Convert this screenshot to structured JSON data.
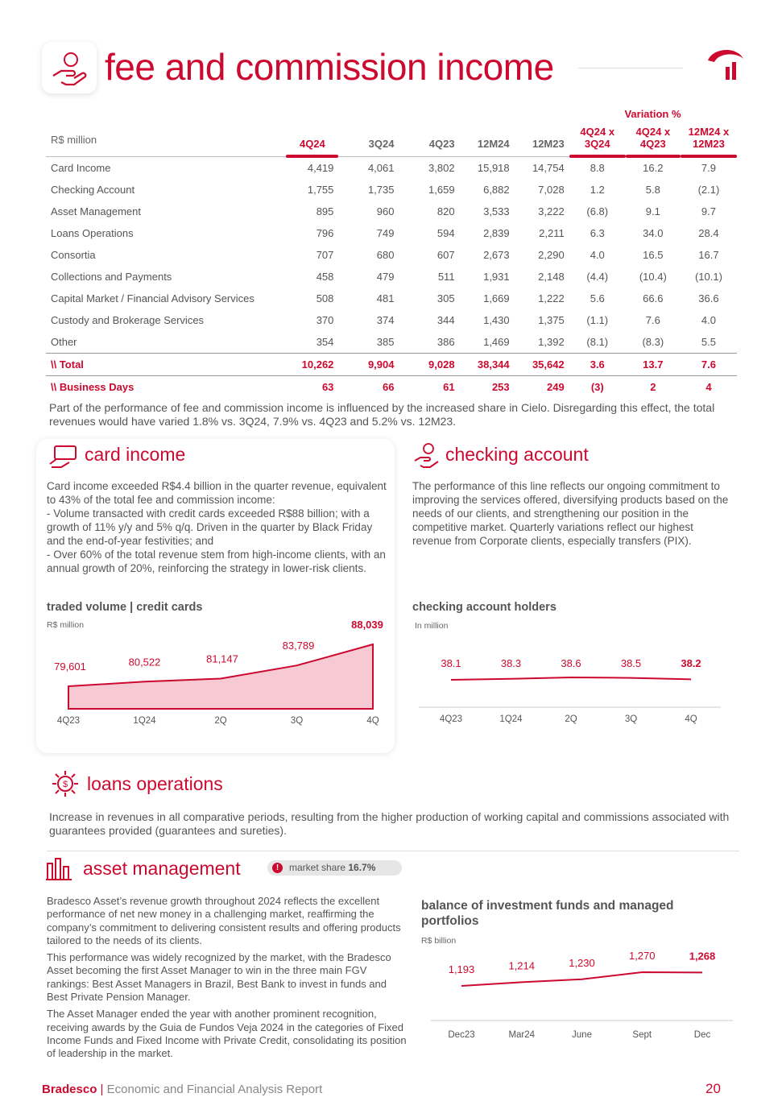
{
  "header": {
    "title": "fee and commission income"
  },
  "table": {
    "unit": "R$ million",
    "group_header": "Variation %",
    "columns": [
      "4Q24",
      "3Q24",
      "4Q23",
      "12M24",
      "12M23",
      "4Q24 x 3Q24",
      "4Q24 x 4Q23",
      "12M24 x 12M23"
    ],
    "rows": [
      [
        "Card Income",
        "4,419",
        "4,061",
        "3,802",
        "15,918",
        "14,754",
        "8.8",
        "16.2",
        "7.9"
      ],
      [
        "Checking Account",
        "1,755",
        "1,735",
        "1,659",
        "6,882",
        "7,028",
        "1.2",
        "5.8",
        "(2.1)"
      ],
      [
        "Asset Management",
        "895",
        "960",
        "820",
        "3,533",
        "3,222",
        "(6.8)",
        "9.1",
        "9.7"
      ],
      [
        "Loans Operations",
        "796",
        "749",
        "594",
        "2,839",
        "2,211",
        "6.3",
        "34.0",
        "28.4"
      ],
      [
        "Consortia",
        "707",
        "680",
        "607",
        "2,673",
        "2,290",
        "4.0",
        "16.5",
        "16.7"
      ],
      [
        "Collections and Payments",
        "458",
        "479",
        "511",
        "1,931",
        "2,148",
        "(4.4)",
        "(10.4)",
        "(10.1)"
      ],
      [
        "Capital Market / Financial Advisory Services",
        "508",
        "481",
        "305",
        "1,669",
        "1,222",
        "5.6",
        "66.6",
        "36.6"
      ],
      [
        "Custody and Brokerage Services",
        "370",
        "374",
        "344",
        "1,430",
        "1,375",
        "(1.1)",
        "7.6",
        "4.0"
      ],
      [
        "Other",
        "354",
        "385",
        "386",
        "1,469",
        "1,392",
        "(8.1)",
        "(8.3)",
        "5.5"
      ]
    ],
    "total": [
      "\\\\ Total",
      "10,262",
      "9,904",
      "9,028",
      "38,344",
      "35,642",
      "3.6",
      "13.7",
      "7.6"
    ],
    "business_days": [
      "\\\\ Business Days",
      "63",
      "66",
      "61",
      "253",
      "249",
      "(3)",
      "2",
      "4"
    ]
  },
  "note": "Part of the performance of fee and commission income is influenced by the increased share in Cielo. Disregarding this effect, the total revenues would have varied 1.8% vs. 3Q24, 7.9% vs. 4Q23 and 5.2% vs. 12M23.",
  "card_income": {
    "title": "card income",
    "paragraphs": [
      "Card income exceeded R$4.4 billion in the quarter revenue, equivalent to 43% of the total fee and commission income:",
      "- Volume transacted with credit cards exceeded R$88 billion; with a growth of 11% y/y and 5% q/q. Driven in the quarter by Black Friday and the end-of-year festivities; and",
      "- Over 60% of the total revenue stem from high-income clients, with an annual growth of 20%, reinforcing the strategy in lower-risk clients."
    ],
    "chart": {
      "type": "area",
      "title": "traded volume | credit cards",
      "unit": "R$ million",
      "categories": [
        "4Q23",
        "1Q24",
        "2Q",
        "3Q",
        "4Q"
      ],
      "values": [
        79601,
        80522,
        81147,
        83789,
        88039
      ],
      "value_labels": [
        "79,601",
        "80,522",
        "81,147",
        "83,789",
        "88,039"
      ],
      "color": "#cc092f"
    }
  },
  "checking_account": {
    "title": "checking account",
    "paragraphs": [
      "The performance of this line reflects our ongoing commitment to improving the services offered, diversifying products based on the needs of our clients, and strengthening our position in the competitive market. Quarterly variations reflect our highest revenue from Corporate clients, especially transfers (PIX)."
    ],
    "chart": {
      "type": "line",
      "title": "checking account holders",
      "unit": "In million",
      "categories": [
        "4Q23",
        "1Q24",
        "2Q",
        "3Q",
        "4Q"
      ],
      "values": [
        38.1,
        38.3,
        38.6,
        38.5,
        38.2
      ],
      "color": "#cc092f"
    }
  },
  "loans_operations": {
    "title": "loans operations",
    "paragraphs": [
      "Increase in revenues in all comparative periods, resulting from the higher production of working capital and commissions associated with guarantees provided (guarantees and sureties)."
    ]
  },
  "asset_management": {
    "title": "asset management",
    "badge": {
      "label": "market share",
      "value": "16.7%"
    },
    "paragraphs": [
      "Bradesco Asset’s revenue growth throughout 2024 reflects the excellent performance of net new money in a challenging market, reaffirming the company’s commitment to delivering consistent results and offering products tailored to the needs of its clients.",
      "This performance was widely recognized by the market, with the Bradesco Asset becoming the first Asset Manager to win in the three main FGV rankings: Best Asset Managers in Brazil, Best Bank to invest in funds and Best Private Pension Manager.",
      "The Asset Manager ended the year with another prominent recognition, receiving awards by the Guia de Fundos Veja 2024 in the categories of Fixed Income Funds and Fixed Income with Private Credit, consolidating its position of leadership in the market."
    ],
    "chart": {
      "type": "line",
      "title": "balance of investment funds and managed portfolios",
      "unit": "R$ billion",
      "categories": [
        "Dec23",
        "Mar24",
        "June",
        "Sept",
        "Dec"
      ],
      "values": [
        1193,
        1214,
        1230,
        1270,
        1268
      ],
      "value_labels": [
        "1,193",
        "1,214",
        "1,230",
        "1,270",
        "1,268"
      ],
      "color": "#cc092f"
    }
  },
  "footer": {
    "brand": "Bradesco",
    "separator": "|",
    "report": "Economic and Financial Analysis Report",
    "page": "20"
  }
}
